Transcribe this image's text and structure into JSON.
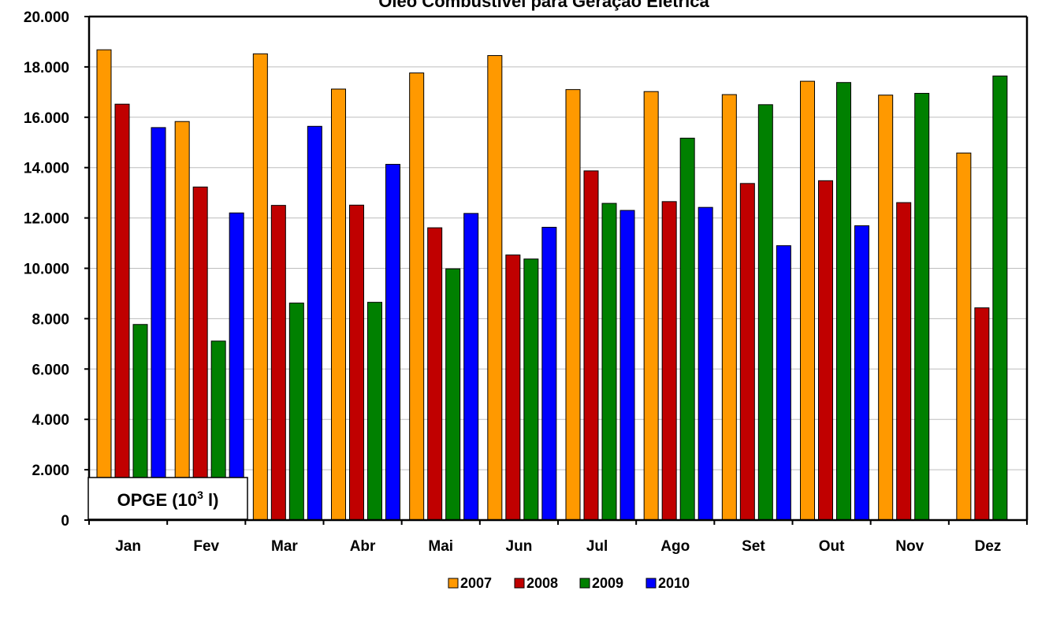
{
  "chart_data": {
    "type": "bar",
    "title": "Óleo Combustível para Geração Elétrica",
    "unit_label": "OPGE (10",
    "unit_sup": "3",
    "unit_suffix": " l)",
    "categories": [
      "Jan",
      "Fev",
      "Mar",
      "Abr",
      "Mai",
      "Jun",
      "Jul",
      "Ago",
      "Set",
      "Out",
      "Nov",
      "Dez"
    ],
    "series": [
      {
        "name": "2007",
        "color": "#FF9900",
        "values": [
          18680,
          15830,
          18520,
          17120,
          17760,
          18450,
          17100,
          17020,
          16900,
          17430,
          16880,
          14580
        ]
      },
      {
        "name": "2008",
        "color": "#C00000",
        "values": [
          16520,
          13230,
          12500,
          12510,
          11610,
          10530,
          13870,
          12650,
          13370,
          13480,
          12610,
          8430
        ]
      },
      {
        "name": "2009",
        "color": "#008000",
        "values": [
          7770,
          7110,
          8620,
          8650,
          9980,
          10370,
          12580,
          15170,
          16500,
          17380,
          16950,
          17640
        ]
      },
      {
        "name": "2010",
        "color": "#0000FF",
        "values": [
          15590,
          12200,
          15640,
          14130,
          12180,
          11630,
          12300,
          12420,
          10900,
          11690,
          null,
          null
        ]
      }
    ],
    "ylim": [
      0,
      20000
    ],
    "yticks": [
      0,
      2000,
      4000,
      6000,
      8000,
      10000,
      12000,
      14000,
      16000,
      18000,
      20000
    ],
    "ytick_labels": [
      "0",
      "2.000",
      "4.000",
      "6.000",
      "8.000",
      "10.000",
      "12.000",
      "14.000",
      "16.000",
      "18.000",
      "20.000"
    ],
    "grid": true,
    "legend_position": "bottom-center"
  }
}
